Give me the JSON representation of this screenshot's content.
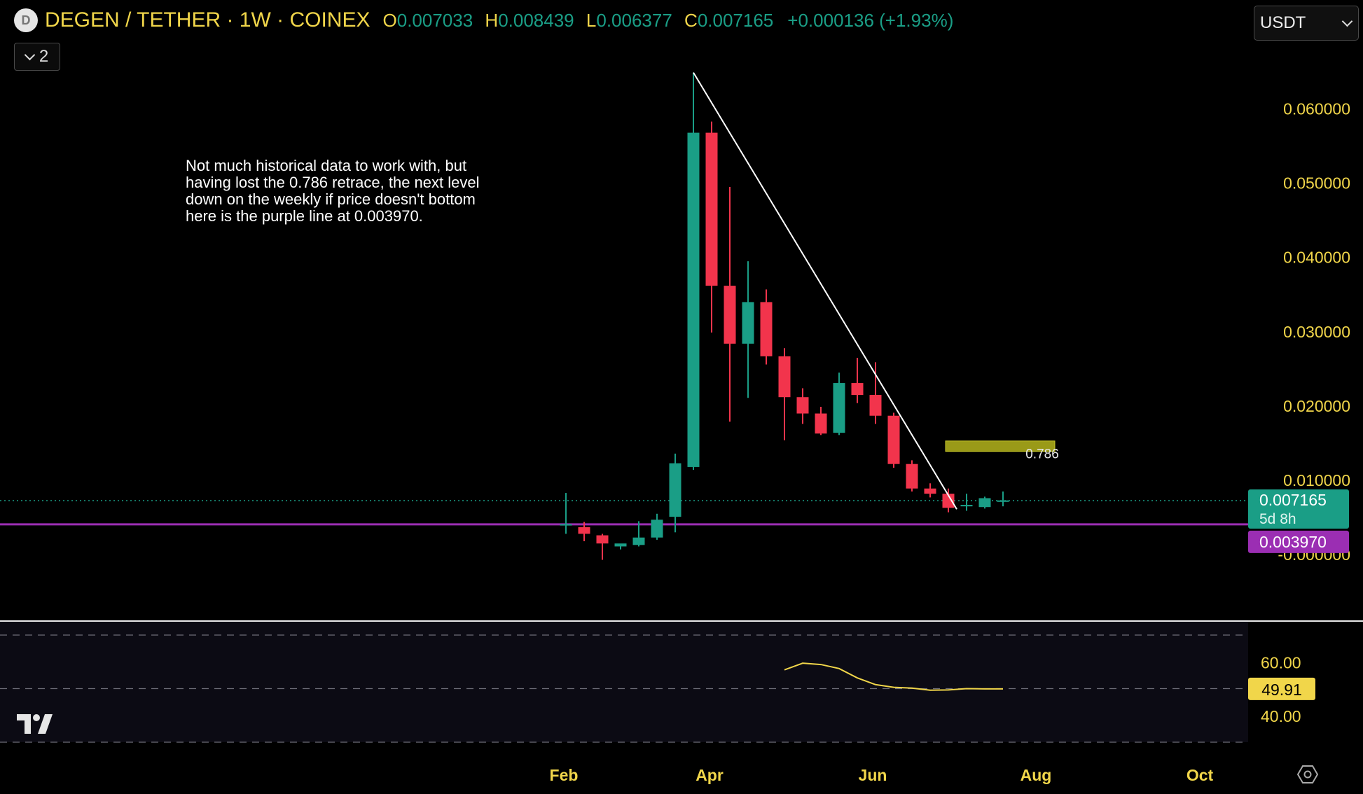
{
  "header": {
    "logo_letter": "D",
    "title": "DEGEN / TETHER · 1W · COINEX",
    "ohlc": [
      {
        "key": "O",
        "value": "0.007033"
      },
      {
        "key": "H",
        "value": "0.008439"
      },
      {
        "key": "L",
        "value": "0.006377"
      },
      {
        "key": "C",
        "value": "0.007165"
      }
    ],
    "change": "+0.000136 (+1.93%)"
  },
  "indicator_toggle": {
    "count": "2"
  },
  "currency_select": {
    "value": "USDT"
  },
  "note": "Not much historical data to work with, but having lost the 0.786 retrace, the next level down on the weekly if price doesn't bottom here is the purple line at 0.003970.",
  "colors": {
    "up": "#1a9e86",
    "down": "#f2344c",
    "axis_text": "#f1d64a",
    "support": "#9b2eb3",
    "rsi": "#f1d64a",
    "fib_zone": "#9a9a18"
  },
  "chart_data": [
    {
      "type": "candlestick",
      "title": "DEGEN / TETHER · 1W · COINEX",
      "x_tick_labels": [
        "Feb",
        "Apr",
        "Jun",
        "Aug",
        "Oct"
      ],
      "y_tick_labels": [
        "0.060000",
        "0.050000",
        "0.040000",
        "0.030000",
        "0.020000",
        "0.010000",
        "-0.000000"
      ],
      "ylim": [
        -0.0065,
        0.0708
      ],
      "candles": [
        {
          "o": 0.004,
          "h": 0.0082,
          "l": 0.0027,
          "c": 0.004
        },
        {
          "o": 0.0036,
          "h": 0.0043,
          "l": 0.0017,
          "c": 0.0027
        },
        {
          "o": 0.0025,
          "h": 0.0027,
          "l": -0.0008,
          "c": 0.0014
        },
        {
          "o": 0.001,
          "h": 0.0013,
          "l": 0.0006,
          "c": 0.0014
        },
        {
          "o": 0.0012,
          "h": 0.0044,
          "l": 0.001,
          "c": 0.0022
        },
        {
          "o": 0.0022,
          "h": 0.0054,
          "l": 0.0019,
          "c": 0.0046
        },
        {
          "o": 0.005,
          "h": 0.0135,
          "l": 0.0029,
          "c": 0.0122
        },
        {
          "o": 0.0117,
          "h": 0.0648,
          "l": 0.0113,
          "c": 0.0567
        },
        {
          "o": 0.0567,
          "h": 0.0582,
          "l": 0.0298,
          "c": 0.0361
        },
        {
          "o": 0.0361,
          "h": 0.0494,
          "l": 0.0178,
          "c": 0.0283
        },
        {
          "o": 0.0283,
          "h": 0.0394,
          "l": 0.021,
          "c": 0.0339
        },
        {
          "o": 0.0339,
          "h": 0.0356,
          "l": 0.0255,
          "c": 0.0266
        },
        {
          "o": 0.0266,
          "h": 0.0277,
          "l": 0.0153,
          "c": 0.0211
        },
        {
          "o": 0.0211,
          "h": 0.0223,
          "l": 0.0175,
          "c": 0.0189
        },
        {
          "o": 0.0189,
          "h": 0.0198,
          "l": 0.016,
          "c": 0.0162
        },
        {
          "o": 0.0163,
          "h": 0.0244,
          "l": 0.016,
          "c": 0.023
        },
        {
          "o": 0.023,
          "h": 0.0264,
          "l": 0.0203,
          "c": 0.0214
        },
        {
          "o": 0.0214,
          "h": 0.0258,
          "l": 0.0175,
          "c": 0.0186
        },
        {
          "o": 0.0186,
          "h": 0.019,
          "l": 0.0116,
          "c": 0.0121
        },
        {
          "o": 0.0121,
          "h": 0.0126,
          "l": 0.0084,
          "c": 0.0088
        },
        {
          "o": 0.0088,
          "h": 0.0095,
          "l": 0.0076,
          "c": 0.0081
        },
        {
          "o": 0.0081,
          "h": 0.0088,
          "l": 0.0056,
          "c": 0.0062
        },
        {
          "o": 0.0064,
          "h": 0.0081,
          "l": 0.0058,
          "c": 0.0066
        },
        {
          "o": 0.0063,
          "h": 0.0077,
          "l": 0.0061,
          "c": 0.0075
        },
        {
          "o": 0.007,
          "h": 0.0084,
          "l": 0.0064,
          "c": 0.0072
        }
      ],
      "support_line": {
        "value": 0.00397,
        "label": "0.003970"
      },
      "last_price": {
        "value": 0.007165,
        "label": "0.007165",
        "countdown": "5d 8h"
      },
      "fib_zone": {
        "label": "0.786",
        "from": 0.0138,
        "to": 0.0152
      },
      "trendline": {
        "from": 0.0648,
        "to": 0.0062
      }
    },
    {
      "type": "line",
      "y_tick_labels": [
        "60.00",
        "40.00"
      ],
      "ylim": [
        30,
        70
      ],
      "bands": [
        70,
        50,
        30
      ],
      "values": [
        57,
        59.5,
        59,
        57.5,
        54,
        51.5,
        50.5,
        50.2,
        49.4,
        49.5,
        50,
        49.9,
        49.91
      ],
      "last_value": "49.91"
    }
  ]
}
